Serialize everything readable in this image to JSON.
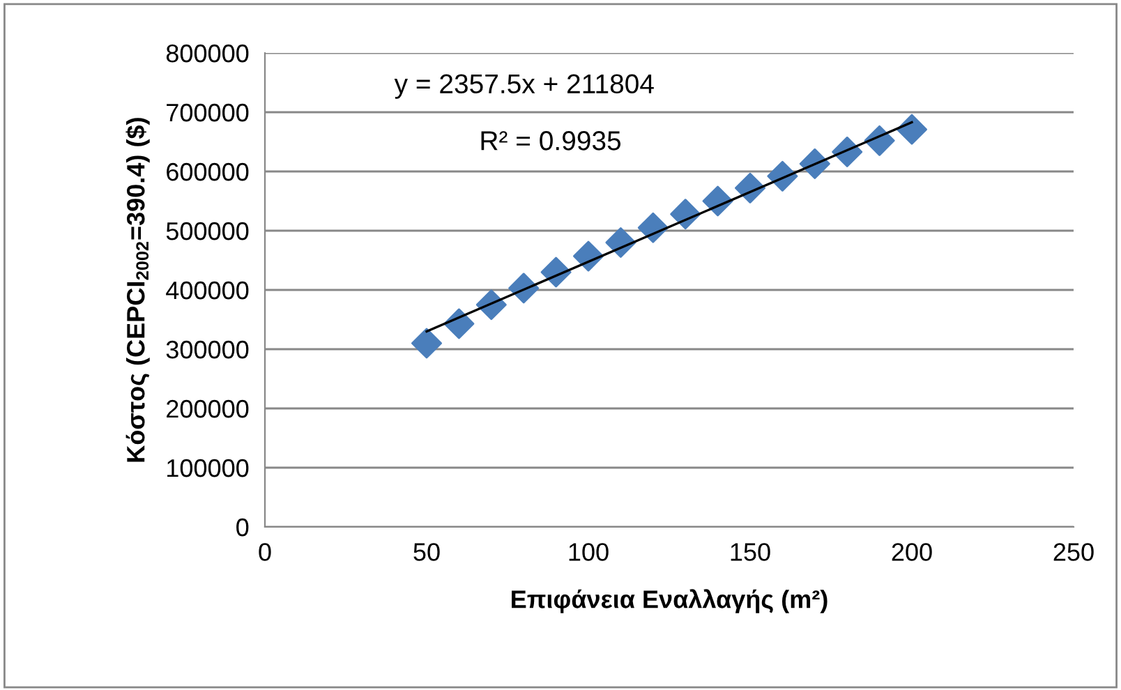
{
  "chart_data": {
    "type": "scatter",
    "xlabel": "Επιφάνεια Εναλλαγής (m²)",
    "ylabel": "Κόστος (CEPCI$_{2002}$=390.4) ($)",
    "annotations": [
      "y = 2357.5x + 211804",
      "R² = 0.9935"
    ],
    "xlim": [
      0,
      250
    ],
    "xticks": [
      0,
      50,
      100,
      150,
      200,
      250
    ],
    "ylim": [
      0,
      800000
    ],
    "yticks": [
      0,
      100000,
      200000,
      300000,
      400000,
      500000,
      600000,
      700000,
      800000
    ],
    "grid": "y",
    "legend": false,
    "marker": "diamond",
    "series": [
      {
        "color": "#4a7ebb",
        "x": [
          50,
          60,
          70,
          80,
          90,
          100,
          110,
          120,
          130,
          140,
          150,
          160,
          170,
          180,
          190,
          200
        ],
        "values": [
          310000,
          343000,
          375000,
          403000,
          430000,
          457000,
          480000,
          505000,
          528000,
          550000,
          572000,
          592000,
          613000,
          633000,
          652000,
          671000
        ]
      },
      {
        "type": "line",
        "color": "#000000",
        "marker": "none",
        "line_style": "solid",
        "x": [
          50,
          200
        ],
        "values": [
          330000,
          683000
        ]
      }
    ]
  }
}
